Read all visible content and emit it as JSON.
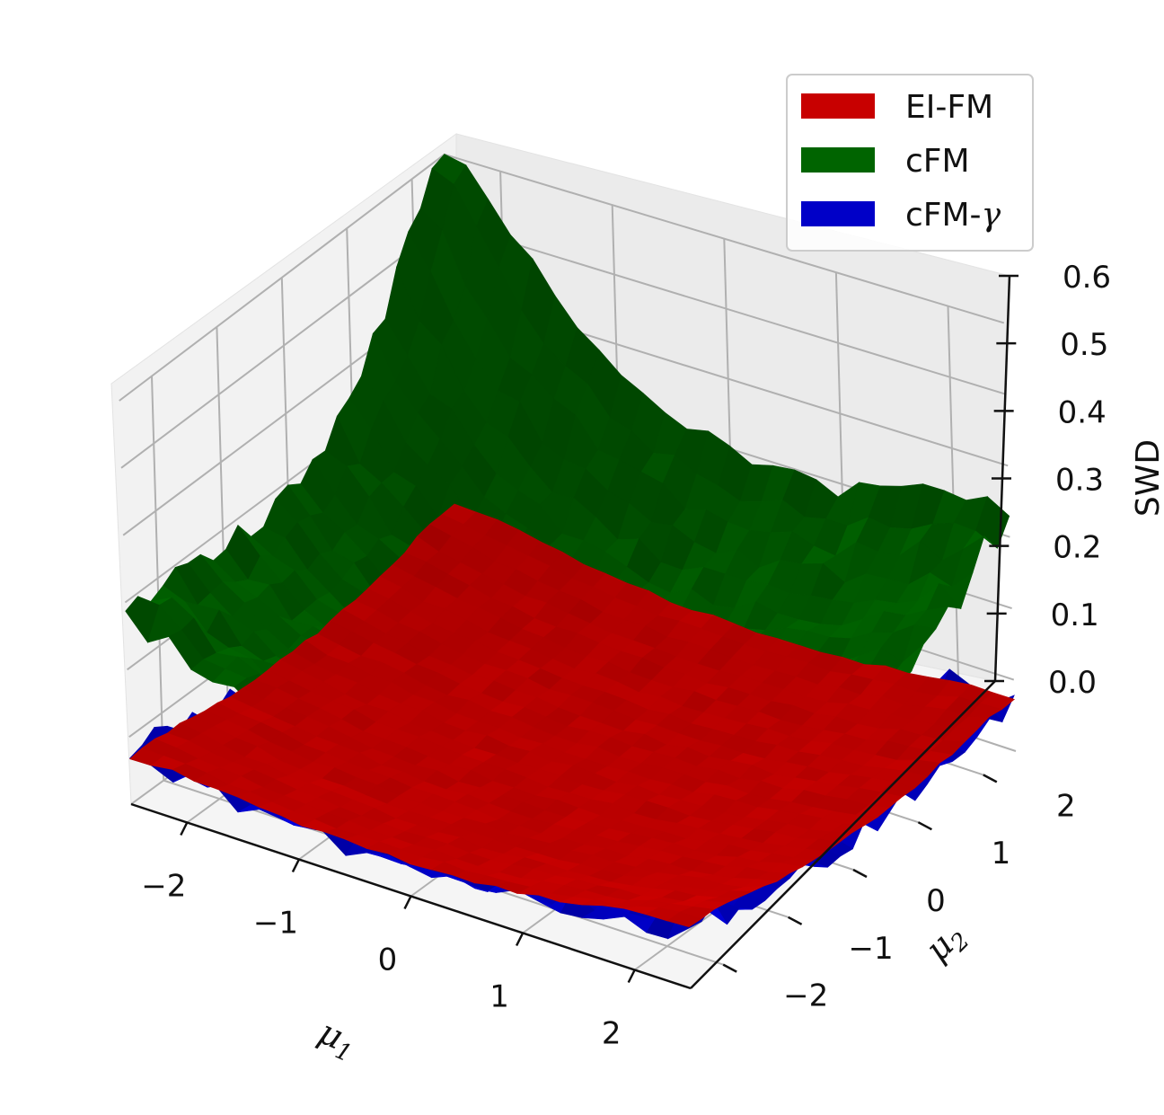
{
  "chart_data": {
    "type": "surface3d",
    "x_axis": {
      "label": "μ",
      "label_sub": "1",
      "ticks": [
        "−2",
        "−1",
        "0",
        "1",
        "2"
      ],
      "range": [
        -2.5,
        2.5
      ]
    },
    "y_axis": {
      "label": "μ",
      "label_sub": "2",
      "ticks": [
        "−2",
        "−1",
        "0",
        "1",
        "2"
      ],
      "range": [
        -2.5,
        2.5
      ]
    },
    "z_axis": {
      "label": "SWD",
      "ticks": [
        "0.0",
        "0.1",
        "0.2",
        "0.3",
        "0.4",
        "0.5",
        "0.6"
      ],
      "range": [
        0,
        0.6
      ]
    },
    "grid": true,
    "legend": {
      "position": "top-right",
      "entries": [
        {
          "label": "EI-FM",
          "color": "#c80000"
        },
        {
          "label": "cFM",
          "color": "#006400"
        },
        {
          "label": "cFM-",
          "label_symbol": "γ",
          "color": "#0000c8"
        }
      ]
    },
    "series": [
      {
        "name": "cFM",
        "color": "#006400",
        "corners": {
          "x-2.5_y-2.5": 0.27,
          "x2.5_y-2.5": 0.17,
          "x-2.5_y2.5": 0.59,
          "x2.5_y2.5": 0.32
        },
        "min": 0.12,
        "surface": "bowl",
        "noisy": true
      },
      {
        "name": "EI-FM",
        "color": "#c80000",
        "corners": {
          "x-2.5_y-2.5": 0.07,
          "x2.5_y-2.5": 0.09,
          "x-2.5_y2.5": 0.09,
          "x2.5_y2.5": 0.07
        },
        "min": 0.015,
        "surface": "bowl",
        "noisy": false
      },
      {
        "name": "cFM-γ",
        "color": "#0000c8",
        "corners": {
          "x-2.5_y-2.5": 0.07,
          "x2.5_y-2.5": 0.08,
          "x-2.5_y2.5": 0.09,
          "x2.5_y2.5": 0.07
        },
        "min": 0.005,
        "surface": "bowl",
        "noisy": true
      }
    ]
  }
}
